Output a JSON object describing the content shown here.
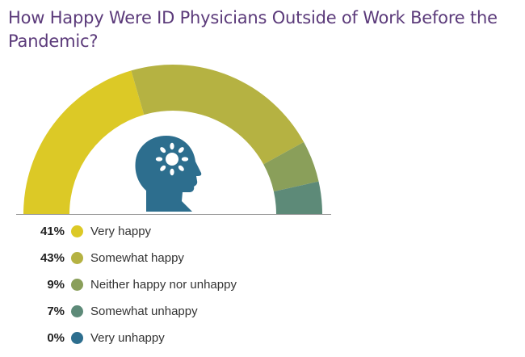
{
  "title": "How Happy Were ID Physicians Outside of Work Before the Pandemic?",
  "chart_data": {
    "type": "pie",
    "subtype": "half-donut",
    "title": "How Happy Were ID Physicians Outside of Work Before the Pandemic?",
    "categories": [
      "Very happy",
      "Somewhat happy",
      "Neither happy nor unhappy",
      "Somewhat unhappy",
      "Very unhappy"
    ],
    "values": [
      41,
      43,
      9,
      7,
      0
    ],
    "labels": [
      "41%",
      "43%",
      "9%",
      "7%",
      "0%"
    ],
    "colors": [
      "#dcc926",
      "#b5b242",
      "#8a9f5a",
      "#5d8a78",
      "#2d6e8e"
    ],
    "legend_position": "bottom-left"
  },
  "icon": {
    "name": "head-with-sun-icon",
    "color": "#2d6e8e"
  }
}
